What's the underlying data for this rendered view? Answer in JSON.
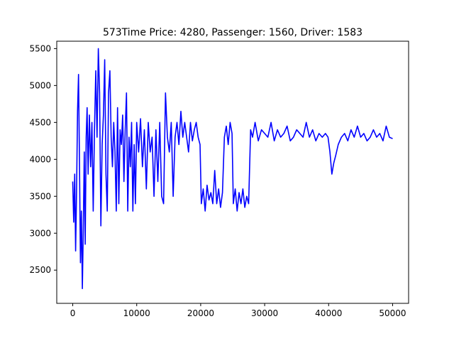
{
  "chart_data": {
    "type": "line",
    "title": "573Time Price: 4280, Passenger: 1560, Driver: 1583",
    "xlabel": "",
    "ylabel": "",
    "xlim": [
      -2500,
      52500
    ],
    "ylim": [
      2050,
      5600
    ],
    "x_ticks": [
      0,
      10000,
      20000,
      30000,
      40000,
      50000
    ],
    "x_tick_labels": [
      "0",
      "10000",
      "20000",
      "30000",
      "40000",
      "50000"
    ],
    "y_ticks": [
      2500,
      3000,
      3500,
      4000,
      4500,
      5000,
      5500
    ],
    "y_tick_labels": [
      "2500",
      "3000",
      "3500",
      "4000",
      "4500",
      "5000",
      "5500"
    ],
    "grid": false,
    "legend": "none",
    "series": [
      {
        "color": "#0000ff",
        "x": [
          0,
          150,
          300,
          450,
          600,
          750,
          900,
          1050,
          1200,
          1350,
          1500,
          1650,
          1800,
          1950,
          2100,
          2250,
          2400,
          2600,
          2800,
          3000,
          3200,
          3400,
          3600,
          3800,
          4000,
          4200,
          4400,
          4600,
          4800,
          5000,
          5200,
          5400,
          5600,
          5800,
          6000,
          6200,
          6400,
          6600,
          6800,
          7000,
          7200,
          7400,
          7600,
          7800,
          8000,
          8200,
          8400,
          8600,
          8800,
          9000,
          9200,
          9400,
          9600,
          9800,
          10000,
          10300,
          10600,
          10900,
          11200,
          11500,
          11800,
          12100,
          12400,
          12700,
          13000,
          13300,
          13600,
          13900,
          14200,
          14500,
          14800,
          15100,
          15400,
          15700,
          16000,
          16300,
          16600,
          16900,
          17200,
          17500,
          17800,
          18100,
          18400,
          18700,
          19000,
          19300,
          19600,
          19900,
          20100,
          20400,
          20700,
          21000,
          21300,
          21600,
          21900,
          22200,
          22500,
          22800,
          23100,
          23400,
          23700,
          24000,
          24300,
          24600,
          24900,
          25100,
          25400,
          25700,
          26000,
          26300,
          26600,
          26900,
          27200,
          27500,
          27800,
          28100,
          28500,
          29000,
          29500,
          30000,
          30500,
          31000,
          31500,
          32000,
          32500,
          33000,
          33500,
          34000,
          34500,
          35000,
          35500,
          36000,
          36500,
          37000,
          37500,
          38000,
          38500,
          39000,
          39500,
          39900,
          40200,
          40500,
          40800,
          41100,
          41500,
          42000,
          42500,
          43000,
          43500,
          44000,
          44500,
          45000,
          45500,
          46000,
          46500,
          47000,
          47500,
          48000,
          48500,
          49000,
          49500,
          50000
        ],
        "y": [
          3700,
          3150,
          3800,
          2760,
          3600,
          4650,
          5150,
          4000,
          2600,
          3300,
          2250,
          3050,
          4100,
          2850,
          4300,
          4700,
          3800,
          4600,
          3900,
          4500,
          3300,
          4400,
          5200,
          4300,
          5500,
          4900,
          3100,
          4200,
          4600,
          5350,
          3800,
          3300,
          4900,
          5200,
          4300,
          3900,
          4500,
          4100,
          3300,
          4700,
          3400,
          4400,
          4200,
          4600,
          3700,
          4400,
          4900,
          3300,
          4300,
          3900,
          4500,
          3300,
          4200,
          3400,
          4500,
          4100,
          4550,
          3900,
          4400,
          3600,
          4500,
          4100,
          4300,
          3500,
          4400,
          3700,
          4500,
          3500,
          3400,
          4900,
          4300,
          4100,
          4500,
          3500,
          4300,
          4500,
          4200,
          4650,
          4300,
          4500,
          4300,
          4100,
          4500,
          4250,
          4400,
          4500,
          4300,
          4200,
          3400,
          3600,
          3300,
          3650,
          3450,
          3550,
          3400,
          3850,
          3400,
          3600,
          3350,
          3550,
          4300,
          4450,
          4200,
          4500,
          4350,
          3400,
          3600,
          3300,
          3550,
          3400,
          3600,
          3350,
          3500,
          3400,
          4400,
          4300,
          4500,
          4250,
          4400,
          4350,
          4300,
          4500,
          4250,
          4400,
          4300,
          4350,
          4450,
          4250,
          4300,
          4400,
          4350,
          4300,
          4500,
          4300,
          4400,
          4250,
          4350,
          4300,
          4350,
          4300,
          4100,
          3800,
          3950,
          4050,
          4200,
          4300,
          4350,
          4250,
          4400,
          4300,
          4450,
          4300,
          4350,
          4250,
          4300,
          4400,
          4300,
          4350,
          4250,
          4450,
          4300,
          4280
        ]
      }
    ]
  }
}
